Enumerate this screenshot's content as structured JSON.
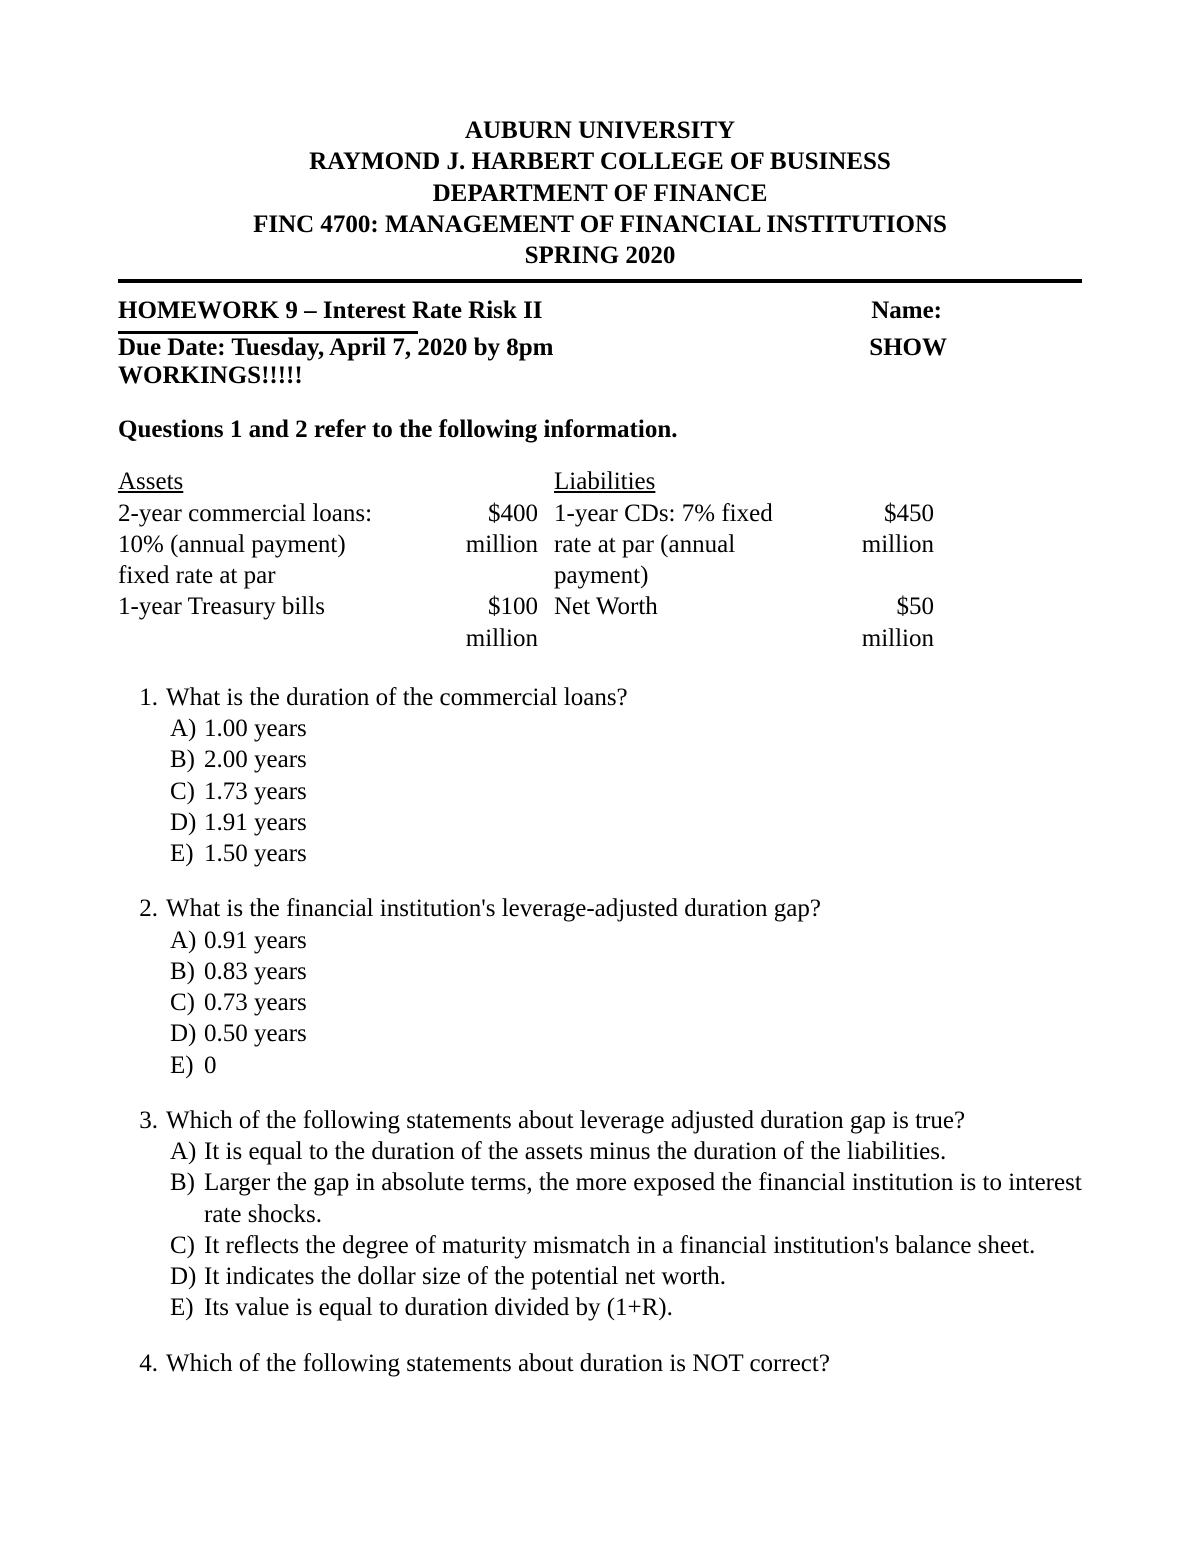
{
  "header": {
    "line1": "AUBURN UNIVERSITY",
    "line2": "RAYMOND J. HARBERT COLLEGE OF BUSINESS",
    "line3": "DEPARTMENT OF FINANCE",
    "line4": "FINC 4700: MANAGEMENT OF FINANCIAL INSTITUTIONS",
    "line5": "SPRING 2020"
  },
  "hw": {
    "title": "HOMEWORK 9 – Interest Rate Risk II",
    "name_label": "Name:",
    "due": "Due Date: Tuesday, April 7, 2020 by 8pm",
    "show": "SHOW",
    "workings": "WORKINGS!!!!!"
  },
  "section_heading": "Questions 1 and 2 refer to the following information.",
  "balance": {
    "assets_header": "Assets",
    "liab_header": "Liabilities",
    "asset1_label_l1": "2-year commercial loans:",
    "asset1_label_l2": "10% (annual payment)",
    "asset1_label_l3": "fixed rate at par",
    "asset1_amt_l1": "$400",
    "asset1_amt_l2": "million",
    "liab1_l1": "1-year CDs: 7% fixed",
    "liab1_l2": "rate at par (annual",
    "liab1_l3": "payment)",
    "liab1_amt_l1": "$450",
    "liab1_amt_l2": "million",
    "asset2_label": "1-year Treasury bills",
    "asset2_amt_l1": "$100",
    "asset2_amt_l2": "million",
    "liab2_label": "Net Worth",
    "liab2_amt_l1": "$50",
    "liab2_amt_l2": "million"
  },
  "q1": {
    "num": "1.",
    "text": "What is the duration of the commercial loans?",
    "a": "1.00 years",
    "b": "2.00 years",
    "c": "1.73 years",
    "d": "1.91 years",
    "e": "1.50 years"
  },
  "q2": {
    "num": "2.",
    "text": "What is the financial institution's leverage-adjusted duration gap?",
    "a": "0.91 years",
    "b": "0.83 years",
    "c": "0.73 years",
    "d": "0.50 years",
    "e": "0"
  },
  "q3": {
    "num": "3.",
    "text": "Which of the following statements about leverage adjusted duration gap is true?",
    "a": "It is equal to the duration of the assets minus the duration of the liabilities.",
    "b": "Larger the gap in absolute terms, the more exposed the financial institution is to interest rate shocks.",
    "c": "It reflects the degree of maturity mismatch in a financial institution's balance sheet.",
    "d": "It indicates the dollar size of the potential net worth.",
    "e": "Its value is equal to duration divided by (1+R)."
  },
  "q4": {
    "num": "4.",
    "text": "Which of the following statements about duration is NOT correct?"
  },
  "letters": {
    "a": "A)",
    "b": "B)",
    "c": "C)",
    "d": "D)",
    "e": "E)"
  }
}
